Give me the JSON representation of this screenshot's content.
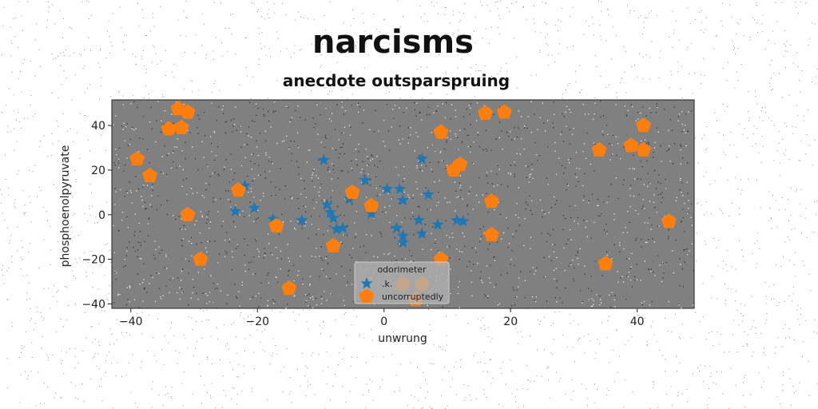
{
  "chart_data": {
    "type": "scatter",
    "title": "narcisms",
    "subtitle": "anecdote outsparspruing",
    "xlabel": "unwrung",
    "ylabel": "phosphoenolpyruvate",
    "xlim": [
      -43,
      49
    ],
    "ylim": [
      -42,
      51.5
    ],
    "xticks": [
      -40,
      -20,
      0,
      20,
      40
    ],
    "yticks": [
      -40,
      -20,
      0,
      20,
      40
    ],
    "xtick_labels": [
      "−40",
      "−20",
      "0",
      "20",
      "40"
    ],
    "ytick_labels": [
      "−40",
      "−20",
      "0",
      "20",
      "40"
    ],
    "grid": false,
    "background": "#808080",
    "legend": {
      "title": "odorimeter",
      "placement": "lower-center"
    },
    "series": [
      {
        "name": ".k.",
        "marker": "star",
        "color": "#1f77b4",
        "points": [
          [
            -9.5,
            24.5
          ],
          [
            -9,
            4.5
          ],
          [
            -8.5,
            1
          ],
          [
            -8,
            -1.5
          ],
          [
            -7.5,
            -6.5
          ],
          [
            -6.5,
            -6
          ],
          [
            -5.5,
            7
          ],
          [
            -3,
            15.5
          ],
          [
            -2,
            0.5
          ],
          [
            0.5,
            11.5
          ],
          [
            2.5,
            11.5
          ],
          [
            3,
            6.5
          ],
          [
            2,
            -6
          ],
          [
            3,
            -9.5
          ],
          [
            3,
            -12.5
          ],
          [
            5.5,
            -2.5
          ],
          [
            6,
            -8.5
          ],
          [
            6,
            25
          ],
          [
            7,
            9
          ],
          [
            8.5,
            -4.5
          ],
          [
            11.5,
            -2.5
          ],
          [
            12.5,
            -3
          ],
          [
            -23.5,
            1.5
          ],
          [
            -22,
            13
          ],
          [
            -20.5,
            3
          ],
          [
            -17.5,
            -2
          ],
          [
            -13,
            -2.5
          ]
        ]
      },
      {
        "name": "uncorruptedly",
        "marker": "pentagon",
        "color": "#ff7f0e",
        "points": [
          [
            -39,
            25
          ],
          [
            -37,
            17.5
          ],
          [
            -34,
            38.5
          ],
          [
            -32.5,
            47.5
          ],
          [
            -32,
            39
          ],
          [
            -31,
            46
          ],
          [
            -31,
            0
          ],
          [
            -29,
            -20
          ],
          [
            -23,
            11
          ],
          [
            -17,
            -5
          ],
          [
            -15,
            -33
          ],
          [
            -8,
            -14
          ],
          [
            -5,
            10
          ],
          [
            -2,
            4
          ],
          [
            3,
            -31
          ],
          [
            5,
            -38
          ],
          [
            6,
            -31
          ],
          [
            9,
            -20
          ],
          [
            9,
            37
          ],
          [
            11,
            20
          ],
          [
            12,
            22.5
          ],
          [
            16,
            45.5
          ],
          [
            17,
            6
          ],
          [
            17,
            -9
          ],
          [
            19,
            46
          ],
          [
            34,
            29
          ],
          [
            35,
            -22
          ],
          [
            39,
            31
          ],
          [
            41,
            29
          ],
          [
            41,
            40
          ],
          [
            45,
            -3
          ]
        ]
      }
    ]
  }
}
